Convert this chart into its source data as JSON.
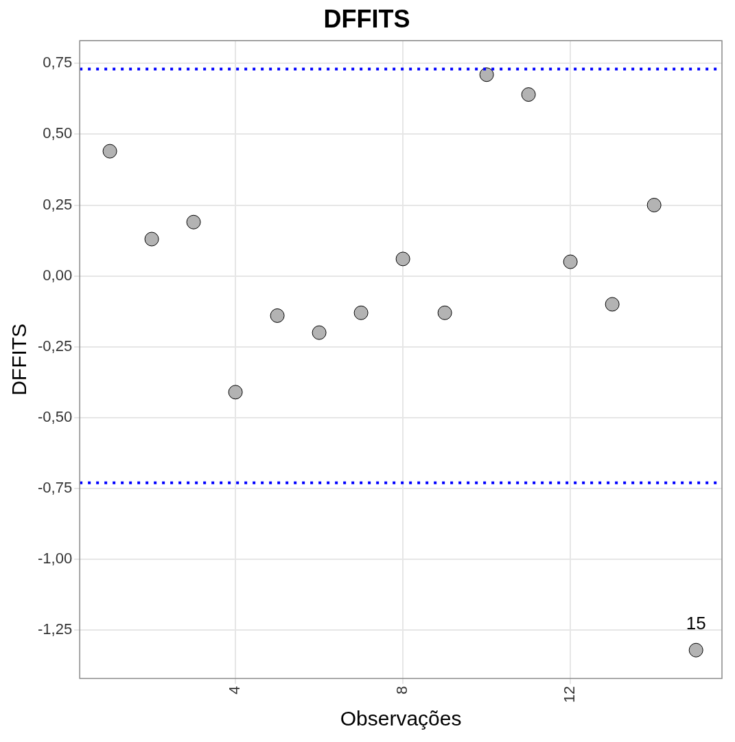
{
  "chart_data": {
    "type": "scatter",
    "title": "DFFITS",
    "xlabel": "Observações",
    "ylabel": "DFFITS",
    "x": [
      1,
      2,
      3,
      4,
      5,
      6,
      7,
      8,
      9,
      10,
      11,
      12,
      13,
      14,
      15
    ],
    "series": [
      {
        "color": "#b3b3b3",
        "values": [
          0.44,
          0.13,
          0.19,
          -0.41,
          -0.14,
          -0.2,
          -0.13,
          0.06,
          -0.13,
          0.71,
          0.64,
          0.05,
          -0.1,
          0.25,
          -1.32
        ]
      }
    ],
    "xlim": [
      0.28,
      15.62
    ],
    "ylim": [
      -1.42,
      0.83
    ],
    "xticks": [
      4,
      8,
      12
    ],
    "yticks": [
      {
        "value": -1.25,
        "label": "-1,25"
      },
      {
        "value": -1,
        "label": "-1,00"
      },
      {
        "value": -0.75,
        "label": "-0,75"
      },
      {
        "value": -0.5,
        "label": "-0,50"
      },
      {
        "value": -0.25,
        "label": "-0,25"
      },
      {
        "value": 0,
        "label": "0,00"
      },
      {
        "value": 0.25,
        "label": "0,25"
      },
      {
        "value": 0.5,
        "label": "0,50"
      },
      {
        "value": 0.75,
        "label": "0,75"
      }
    ],
    "ref_lines": [
      {
        "axis": "y",
        "value": 0.73,
        "color": "#0000ff",
        "line_style": "dotted"
      },
      {
        "axis": "y",
        "value": -0.73,
        "color": "#0000ff",
        "line_style": "dotted"
      }
    ],
    "annotations": [
      {
        "text": "15",
        "x": 15,
        "y": -1.32
      }
    ],
    "grid": true,
    "marker": "circle"
  }
}
